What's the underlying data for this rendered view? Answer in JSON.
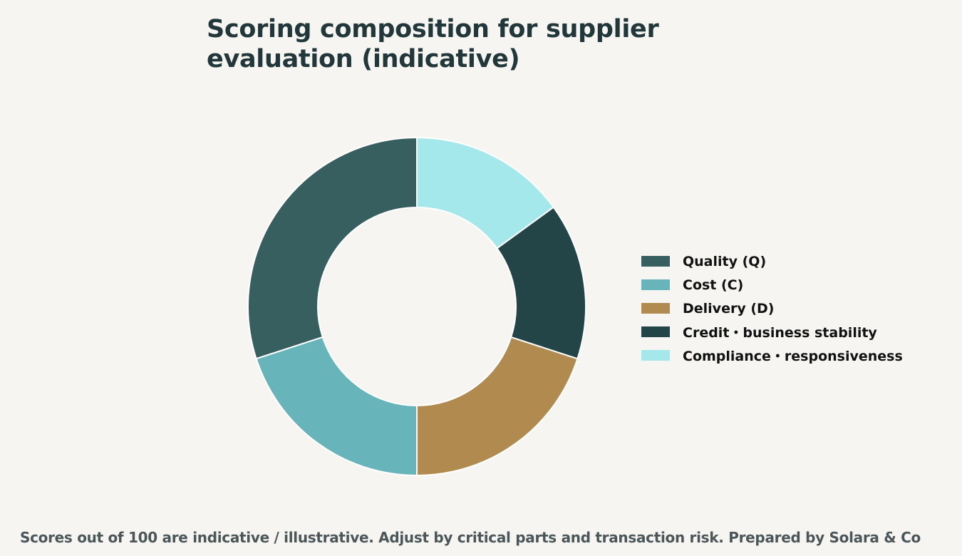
{
  "chart_data": {
    "type": "pie",
    "title": "Scoring composition for supplier evaluation (indicative)",
    "donut": true,
    "legend_position": "right",
    "categories": [
      "Quality (Q)",
      "Cost (C)",
      "Delivery (D)",
      "Credit・business stability",
      "Compliance・responsiveness"
    ],
    "values": [
      30,
      20,
      20,
      15,
      15
    ],
    "colors": [
      "#375f60",
      "#67b5ba",
      "#b08a4e",
      "#244548",
      "#a4e8ec"
    ]
  },
  "footnote": "Scores out of 100 are indicative / illustrative. Adjust by critical parts and transaction risk. Prepared by Solara & Co"
}
